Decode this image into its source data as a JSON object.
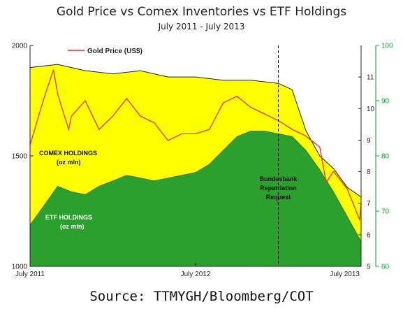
{
  "title": "Gold Price vs Comex Inventories vs ETF Holdings",
  "subtitle": "July 2011 - July 2013",
  "source": "Source: TTMYGH/Bloomberg/COT",
  "legend": {
    "gold_price": "Gold Price (US$)"
  },
  "area_labels": {
    "comex": [
      "COMEX HOLDINGS",
      "(oz mln)"
    ],
    "etf": [
      "ETF HOLDINGS",
      "(oz mln)"
    ]
  },
  "annotation": [
    "Bundesbank",
    "Repatriation",
    "Request"
  ],
  "colors": {
    "comex": "#ffff00",
    "etf": "#2ca02c",
    "gold": "#e03030",
    "green_axis": "#1a9a3a"
  },
  "chart_data": {
    "type": "area",
    "title": "Gold Price vs Comex Inventories vs ETF Holdings",
    "subtitle": "July 2011 - July 2013",
    "x_ticks": [
      "July 2011",
      "July 2012",
      "July 2013"
    ],
    "xlim": [
      "2011-07",
      "2013-07"
    ],
    "annotation_date": "2013-01",
    "axes": {
      "left_gold": {
        "ylim": [
          1000,
          2000
        ],
        "ticks": [
          1000,
          1500,
          2000
        ]
      },
      "right_comex": {
        "ylim": [
          5,
          12
        ],
        "ticks": [
          5,
          6,
          7,
          8,
          9,
          10,
          11
        ]
      },
      "right_etf": {
        "ylim": [
          60,
          100
        ],
        "ticks": [
          60,
          70,
          80,
          90,
          100
        ]
      }
    },
    "series": [
      {
        "name": "Gold Price (US$)",
        "axis": "left_gold",
        "x": [
          "2011-07",
          "2011-08",
          "2011-08-22",
          "2011-09",
          "2011-09-25",
          "2011-10",
          "2011-11",
          "2011-12",
          "2012-01",
          "2012-02",
          "2012-03",
          "2012-04",
          "2012-05",
          "2012-06",
          "2012-07",
          "2012-08",
          "2012-09",
          "2012-10",
          "2012-11",
          "2012-12",
          "2013-01",
          "2013-02",
          "2013-03",
          "2013-04",
          "2013-04-15",
          "2013-05",
          "2013-06",
          "2013-06-28",
          "2013-07"
        ],
        "values": [
          1550,
          1760,
          1890,
          1780,
          1620,
          1680,
          1750,
          1620,
          1680,
          1760,
          1680,
          1650,
          1570,
          1600,
          1600,
          1620,
          1740,
          1770,
          1720,
          1690,
          1660,
          1620,
          1590,
          1540,
          1380,
          1430,
          1350,
          1210,
          1280
        ]
      },
      {
        "name": "COMEX HOLDINGS",
        "axis": "right_comex",
        "x": [
          "2011-07",
          "2011-09",
          "2011-11",
          "2012-01",
          "2012-03",
          "2012-05",
          "2012-07",
          "2012-09",
          "2012-11",
          "2013-01",
          "2013-02",
          "2013-03",
          "2013-04",
          "2013-05",
          "2013-06",
          "2013-07"
        ],
        "values": [
          11.3,
          11.4,
          11.2,
          11.1,
          11.2,
          11.0,
          11.0,
          10.9,
          10.9,
          10.8,
          10.6,
          9.3,
          8.5,
          8.1,
          7.5,
          7.2
        ]
      },
      {
        "name": "ETF HOLDINGS",
        "axis": "right_etf",
        "x": [
          "2011-07",
          "2011-08",
          "2011-09",
          "2011-10",
          "2011-11",
          "2011-12",
          "2012-01",
          "2012-02",
          "2012-03",
          "2012-04",
          "2012-05",
          "2012-06",
          "2012-07",
          "2012-08",
          "2012-09",
          "2012-10",
          "2012-11",
          "2012-12",
          "2013-01",
          "2013-02",
          "2013-03",
          "2013-04",
          "2013-05",
          "2013-06",
          "2013-07"
        ],
        "values": [
          67.5,
          71,
          74.5,
          73.5,
          73,
          74.5,
          75.5,
          76.5,
          76,
          75.5,
          76,
          76.5,
          77,
          78.5,
          81,
          83.5,
          84.5,
          84.5,
          84,
          83.5,
          81,
          77.5,
          73.5,
          69,
          64.5
        ]
      }
    ],
    "grid": false,
    "legend_position": "top-left"
  }
}
